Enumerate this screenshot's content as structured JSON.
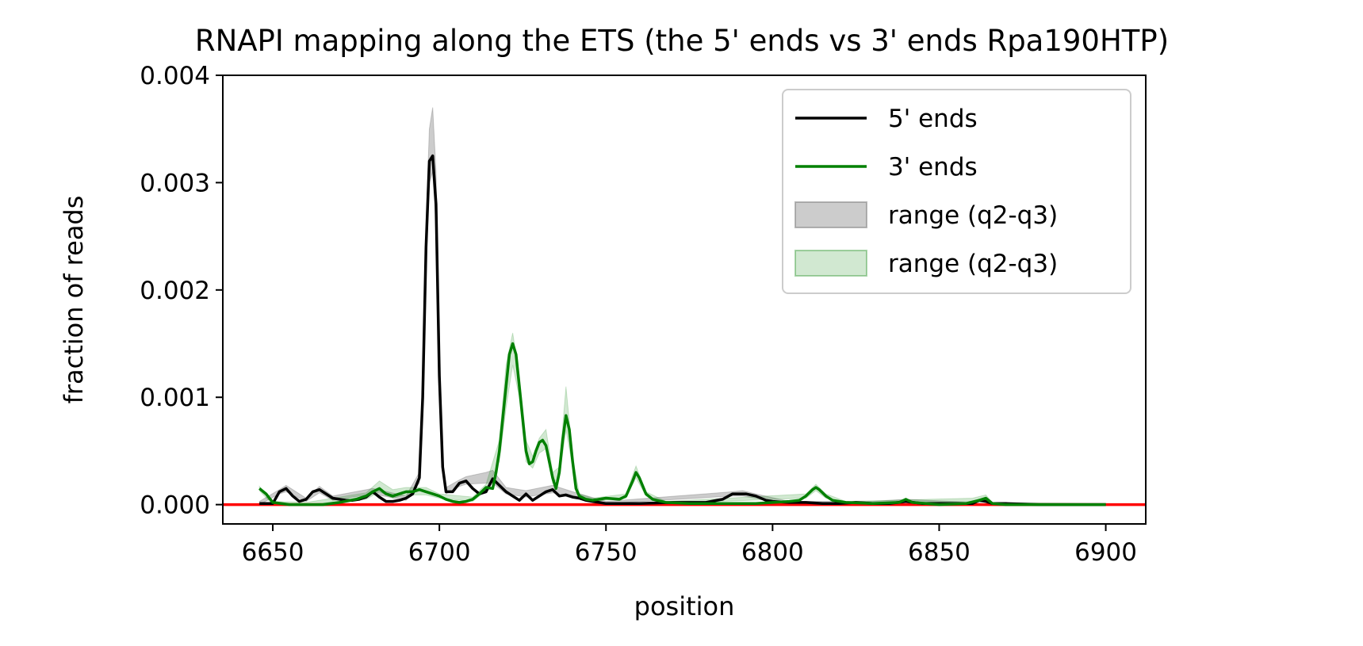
{
  "chart_data": {
    "type": "line",
    "title": "RNAPI mapping along the ETS (the 5' ends vs 3' ends Rpa190HTP)",
    "xlabel": "position",
    "ylabel": "fraction of reads",
    "xlim": [
      6635,
      6912
    ],
    "ylim": [
      -0.00018,
      0.004
    ],
    "xticks": [
      6650,
      6700,
      6750,
      6800,
      6850,
      6900
    ],
    "yticks": [
      0.0,
      0.001,
      0.002,
      0.003,
      0.004
    ],
    "xtick_labels": [
      "6650",
      "6700",
      "6750",
      "6800",
      "6850",
      "6900"
    ],
    "ytick_labels": [
      "0.000",
      "0.001",
      "0.002",
      "0.003",
      "0.004"
    ],
    "legend_position": "upper-right",
    "reference_line": {
      "y": 0.0,
      "color": "#ff0000"
    },
    "series": [
      {
        "name": "5' ends",
        "color": "#000000",
        "x": [
          6646,
          6650,
          6652,
          6654,
          6656,
          6658,
          6660,
          6662,
          6664,
          6666,
          6668,
          6670,
          6672,
          6674,
          6676,
          6678,
          6680,
          6682,
          6684,
          6686,
          6688,
          6690,
          6692,
          6694,
          6695,
          6696,
          6697,
          6698,
          6699,
          6700,
          6701,
          6702,
          6704,
          6706,
          6708,
          6710,
          6712,
          6714,
          6716,
          6718,
          6720,
          6722,
          6724,
          6726,
          6728,
          6730,
          6732,
          6734,
          6736,
          6738,
          6740,
          6742,
          6744,
          6746,
          6748,
          6750,
          6760,
          6770,
          6780,
          6785,
          6788,
          6790,
          6792,
          6795,
          6798,
          6800,
          6805,
          6810,
          6815,
          6820,
          6825,
          6830,
          6835,
          6840,
          6845,
          6850,
          6855,
          6860,
          6862,
          6864,
          6866,
          6870,
          6880,
          6890,
          6900
        ],
        "y": [
          1e-05,
          1e-05,
          0.00012,
          0.00015,
          8e-05,
          3e-05,
          5e-05,
          0.00012,
          0.00014,
          0.0001,
          6e-05,
          5e-05,
          4e-05,
          4e-05,
          5e-05,
          7e-05,
          0.00012,
          7e-05,
          3e-05,
          3e-05,
          4e-05,
          6e-05,
          0.0001,
          0.00025,
          0.001,
          0.0024,
          0.0032,
          0.00325,
          0.0028,
          0.0012,
          0.00035,
          0.00012,
          0.00012,
          0.0002,
          0.00022,
          0.00015,
          0.0001,
          0.00012,
          0.00024,
          0.00018,
          0.00012,
          8e-05,
          4e-05,
          0.0001,
          4e-05,
          8e-05,
          0.00012,
          0.00014,
          8e-05,
          9e-05,
          7e-05,
          6e-05,
          4e-05,
          3e-05,
          2e-05,
          1e-05,
          1e-05,
          2e-05,
          2e-05,
          5e-05,
          0.0001,
          0.0001,
          0.0001,
          8e-05,
          4e-05,
          3e-05,
          2e-05,
          2e-05,
          1e-05,
          1e-05,
          2e-05,
          1e-05,
          1e-05,
          3e-05,
          1e-05,
          1e-05,
          1e-05,
          1e-05,
          4e-05,
          3e-05,
          1e-05,
          1e-05,
          0.0,
          0.0,
          0.0
        ]
      },
      {
        "name": "3' ends",
        "color": "#008000",
        "x": [
          6646,
          6648,
          6650,
          6655,
          6660,
          6665,
          6670,
          6675,
          6678,
          6680,
          6682,
          6684,
          6686,
          6688,
          6690,
          6692,
          6694,
          6696,
          6698,
          6700,
          6702,
          6704,
          6706,
          6708,
          6710,
          6712,
          6714,
          6716,
          6717,
          6718,
          6719,
          6720,
          6721,
          6722,
          6723,
          6724,
          6725,
          6726,
          6727,
          6728,
          6729,
          6730,
          6731,
          6732,
          6733,
          6734,
          6735,
          6736,
          6737,
          6738,
          6739,
          6740,
          6741,
          6742,
          6744,
          6746,
          6750,
          6754,
          6756,
          6758,
          6759,
          6760,
          6762,
          6764,
          6768,
          6775,
          6785,
          6795,
          6800,
          6805,
          6808,
          6810,
          6812,
          6813,
          6814,
          6816,
          6818,
          6822,
          6830,
          6838,
          6840,
          6842,
          6850,
          6858,
          6862,
          6864,
          6866,
          6870,
          6880,
          6890,
          6900
        ],
        "y": [
          0.00015,
          0.0001,
          2e-05,
          0.0,
          0.0,
          0.0,
          2e-05,
          5e-05,
          8e-05,
          0.00012,
          0.00015,
          0.0001,
          8e-05,
          0.0001,
          0.00012,
          0.00012,
          0.00014,
          0.00012,
          0.0001,
          8e-05,
          5e-05,
          3e-05,
          2e-05,
          3e-05,
          5e-05,
          0.0001,
          0.00016,
          0.00015,
          0.0003,
          0.0005,
          0.0008,
          0.0011,
          0.0014,
          0.0015,
          0.0014,
          0.0011,
          0.0008,
          0.0005,
          0.00038,
          0.0004,
          0.0005,
          0.00058,
          0.0006,
          0.00055,
          0.0004,
          0.00025,
          0.00015,
          0.0003,
          0.0006,
          0.00083,
          0.0007,
          0.0004,
          0.00015,
          8e-05,
          5e-05,
          4e-05,
          6e-05,
          5e-05,
          8e-05,
          0.00022,
          0.0003,
          0.00025,
          0.0001,
          5e-05,
          2e-05,
          1e-05,
          1e-05,
          1e-05,
          2e-05,
          3e-05,
          4e-05,
          8e-05,
          0.00014,
          0.00016,
          0.00014,
          8e-05,
          4e-05,
          2e-05,
          1e-05,
          2e-05,
          5e-05,
          2e-05,
          0.0,
          1e-05,
          4e-05,
          6e-05,
          1e-05,
          0.0,
          0.0,
          0.0,
          0.0
        ]
      }
    ],
    "bands": [
      {
        "name": "range (q2-q3)",
        "color": "#808080",
        "opacity": 0.4,
        "x": [
          6646,
          6652,
          6654,
          6660,
          6664,
          6668,
          6680,
          6690,
          6694,
          6695,
          6696,
          6697,
          6698,
          6699,
          6700,
          6701,
          6702,
          6706,
          6708,
          6714,
          6716,
          6720,
          6726,
          6734,
          6740,
          6750,
          6788,
          6791,
          6795,
          6805,
          6830,
          6840,
          6860,
          6864,
          6866,
          6900
        ],
        "lower": [
          0.0,
          0.0001,
          0.00012,
          3e-05,
          0.00011,
          4e-05,
          0.0001,
          4e-05,
          0.0002,
          0.0009,
          0.0022,
          0.003,
          0.0031,
          0.0026,
          0.0011,
          0.0003,
          0.0001,
          0.00017,
          0.00019,
          0.0002,
          0.0002,
          0.0001,
          7e-05,
          0.00011,
          6e-05,
          1e-05,
          8e-05,
          8e-05,
          6e-05,
          1e-05,
          1e-05,
          2e-05,
          1e-05,
          3e-05,
          0.0,
          0.0
        ],
        "upper": [
          3e-05,
          0.00014,
          0.00018,
          6e-05,
          0.00017,
          8e-05,
          0.00015,
          8e-05,
          0.0003,
          0.0011,
          0.0026,
          0.0035,
          0.0037,
          0.0031,
          0.0013,
          0.0004,
          0.00016,
          0.00023,
          0.00026,
          0.0003,
          0.00032,
          0.00016,
          0.00013,
          0.00018,
          0.00012,
          3e-05,
          0.00012,
          0.00013,
          0.0001,
          3e-05,
          3e-05,
          5e-05,
          2e-05,
          6e-05,
          1e-05,
          1e-05
        ]
      },
      {
        "name": "range (q2-q3)",
        "color": "#008000",
        "opacity": 0.18,
        "x": [
          6646,
          6650,
          6660,
          6678,
          6682,
          6686,
          6690,
          6696,
          6700,
          6710,
          6714,
          6718,
          6720,
          6722,
          6724,
          6726,
          6728,
          6730,
          6732,
          6734,
          6736,
          6738,
          6740,
          6742,
          6746,
          6756,
          6759,
          6762,
          6768,
          6810,
          6813,
          6816,
          6822,
          6860,
          6864,
          6866,
          6900
        ],
        "lower": [
          0.00013,
          0.0,
          0.0,
          5e-05,
          0.00012,
          6e-05,
          9e-05,
          9e-05,
          6e-05,
          3e-05,
          0.00013,
          0.0004,
          0.0009,
          0.0013,
          0.001,
          0.0004,
          0.00034,
          0.00048,
          0.00052,
          0.0002,
          0.00025,
          0.0007,
          0.00035,
          6e-05,
          3e-05,
          6e-05,
          0.00025,
          8e-05,
          1e-05,
          6e-05,
          0.00013,
          6e-05,
          1e-05,
          3e-05,
          4e-05,
          0.0,
          0.0
        ],
        "upper": [
          0.00017,
          3e-05,
          2e-05,
          0.00011,
          0.00022,
          0.00014,
          0.00016,
          0.00016,
          0.0001,
          7e-05,
          0.00019,
          0.0006,
          0.0013,
          0.0016,
          0.0012,
          0.0006,
          0.00045,
          0.00062,
          0.0007,
          0.0003,
          0.00035,
          0.0011,
          0.00045,
          0.0001,
          6e-05,
          0.0001,
          0.00036,
          0.00012,
          3e-05,
          0.0001,
          0.00019,
          0.0001,
          3e-05,
          6e-05,
          9e-05,
          2e-05,
          1e-05
        ]
      }
    ],
    "legend": [
      {
        "label": "5' ends",
        "kind": "line",
        "color": "#000000"
      },
      {
        "label": "3' ends",
        "kind": "line",
        "color": "#008000"
      },
      {
        "label": "range (q2-q3)",
        "kind": "patch",
        "color": "#808080",
        "opacity": 0.4
      },
      {
        "label": "range (q2-q3)",
        "kind": "patch",
        "color": "#008000",
        "opacity": 0.18
      }
    ]
  }
}
